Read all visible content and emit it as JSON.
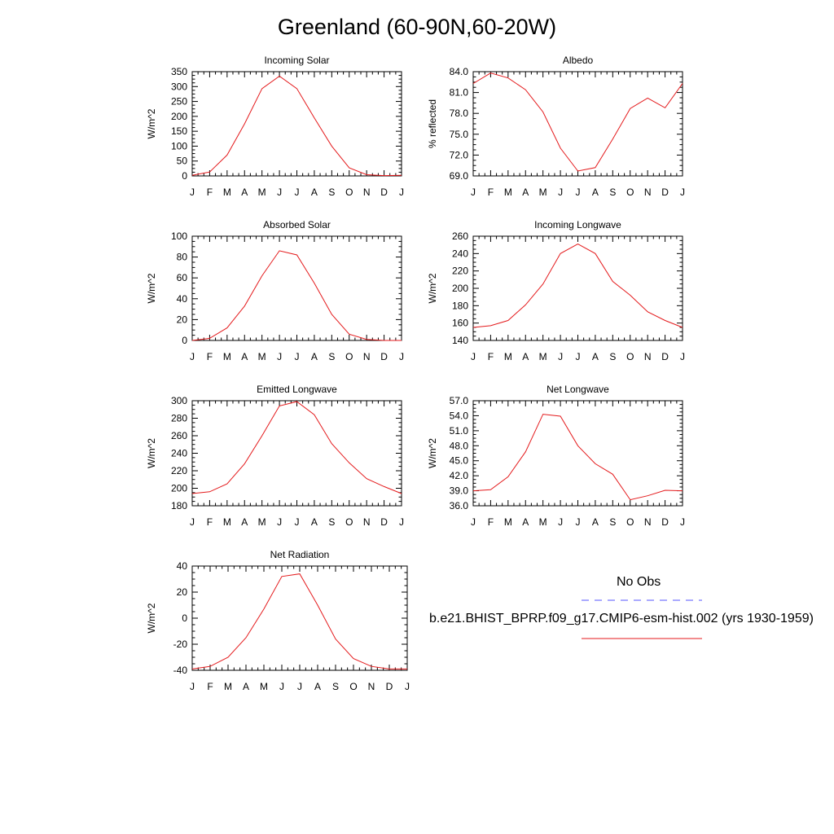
{
  "title": "Greenland (60-90N,60-20W)",
  "months": [
    "J",
    "F",
    "M",
    "A",
    "M",
    "J",
    "J",
    "A",
    "S",
    "O",
    "N",
    "D",
    "J"
  ],
  "colors": {
    "model": "#e41a1c",
    "obs": "#5555ff",
    "axis": "#000000"
  },
  "legend": {
    "obs_label": "No Obs",
    "model_label": "b.e21.BHIST_BPRP.f09_g17.CMIP6-esm-hist.002 (yrs 1930-1959)"
  },
  "chart_data": [
    {
      "type": "line",
      "title": "Incoming Solar",
      "ylabel": "W/m^2",
      "ylim": [
        0,
        350
      ],
      "yticks": [
        0,
        50,
        100,
        150,
        200,
        250,
        300,
        350
      ],
      "ytick_labels": [
        "0",
        "50",
        "100",
        "150",
        "200",
        "250",
        "300",
        "350"
      ],
      "series": [
        {
          "values": [
            2,
            13,
            70,
            175,
            293,
            335,
            293,
            195,
            100,
            27,
            4,
            1,
            2
          ]
        }
      ]
    },
    {
      "type": "line",
      "title": "Albedo",
      "ylabel": "% reflected",
      "ylim": [
        69.0,
        84.0
      ],
      "yticks": [
        69,
        72,
        75,
        78,
        81,
        84
      ],
      "ytick_labels": [
        "69.0",
        "72.0",
        "75.0",
        "78.0",
        "81.0",
        "84.0"
      ],
      "series": [
        {
          "values": [
            82.3,
            83.8,
            83.1,
            81.4,
            78.2,
            73.0,
            69.7,
            70.2,
            74.3,
            78.7,
            80.2,
            78.8,
            82.3
          ]
        }
      ]
    },
    {
      "type": "line",
      "title": "Absorbed Solar",
      "ylabel": "W/m^2",
      "ylim": [
        0,
        100
      ],
      "yticks": [
        0,
        20,
        40,
        60,
        80,
        100
      ],
      "ytick_labels": [
        "0",
        "20",
        "40",
        "60",
        "80",
        "100"
      ],
      "series": [
        {
          "values": [
            0,
            2,
            12,
            33,
            62,
            86,
            82,
            55,
            25,
            6,
            1,
            0,
            0
          ]
        }
      ]
    },
    {
      "type": "line",
      "title": "Incoming Longwave",
      "ylabel": "W/m^2",
      "ylim": [
        140,
        260
      ],
      "yticks": [
        140,
        160,
        180,
        200,
        220,
        240,
        260
      ],
      "ytick_labels": [
        "140",
        "160",
        "180",
        "200",
        "220",
        "240",
        "260"
      ],
      "series": [
        {
          "values": [
            155,
            157,
            163,
            181,
            205,
            240,
            251,
            240,
            208,
            192,
            173,
            163,
            155
          ]
        }
      ]
    },
    {
      "type": "line",
      "title": "Emitted Longwave",
      "ylabel": "W/m^2",
      "ylim": [
        180,
        300
      ],
      "yticks": [
        180,
        200,
        220,
        240,
        260,
        280,
        300
      ],
      "ytick_labels": [
        "180",
        "200",
        "220",
        "240",
        "260",
        "280",
        "300"
      ],
      "series": [
        {
          "values": [
            194,
            196,
            205,
            228,
            260,
            294,
            299,
            284,
            251,
            229,
            211,
            202,
            194
          ]
        }
      ]
    },
    {
      "type": "line",
      "title": "Net Longwave",
      "ylabel": "W/m^2",
      "ylim": [
        36.0,
        57.0
      ],
      "yticks": [
        36,
        39,
        42,
        45,
        48,
        51,
        54,
        57
      ],
      "ytick_labels": [
        "36.0",
        "39.0",
        "42.0",
        "45.0",
        "48.0",
        "51.0",
        "54.0",
        "57.0"
      ],
      "series": [
        {
          "values": [
            39.0,
            39.2,
            41.8,
            46.8,
            54.3,
            53.9,
            48.0,
            44.4,
            42.3,
            37.2,
            38.0,
            39.1,
            39.0
          ]
        }
      ]
    },
    {
      "type": "line",
      "title": "Net Radiation",
      "ylabel": "W/m^2",
      "ylim": [
        -40,
        40
      ],
      "yticks": [
        -40,
        -20,
        0,
        20,
        40
      ],
      "ytick_labels": [
        "-40",
        "-20",
        "0",
        "20",
        "40"
      ],
      "series": [
        {
          "values": [
            -39,
            -37,
            -30,
            -15,
            7,
            32,
            34,
            10,
            -16,
            -31,
            -37,
            -39,
            -39
          ]
        }
      ]
    }
  ]
}
